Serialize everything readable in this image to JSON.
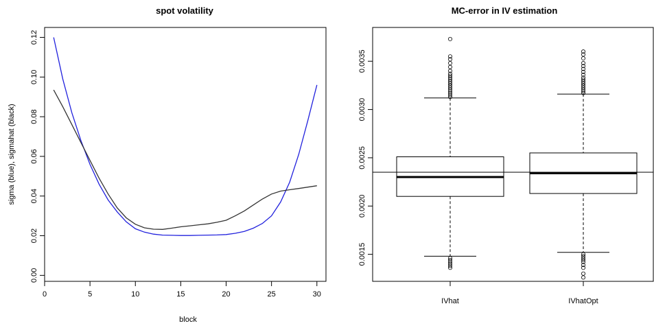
{
  "chart_data": [
    {
      "type": "line",
      "title": "spot volatility",
      "xlabel": "block",
      "ylabel": "sigma (blue), sigmahat (black)",
      "xlim": [
        0,
        31
      ],
      "ylim": [
        -0.003,
        0.125
      ],
      "xticks": [
        0,
        5,
        10,
        15,
        20,
        25,
        30
      ],
      "yticks": [
        0.0,
        0.02,
        0.04,
        0.06,
        0.08,
        0.1,
        0.12
      ],
      "ytick_labels": [
        "0.00",
        "0.02",
        "0.04",
        "0.06",
        "0.08",
        "0.10",
        "0.12"
      ],
      "grid": false,
      "series": [
        {
          "color": "#2020dd",
          "x": [
            1,
            2,
            3,
            4,
            5,
            6,
            7,
            8,
            9,
            10,
            11,
            12,
            13,
            14,
            15,
            16,
            17,
            18,
            19,
            20,
            21,
            22,
            23,
            24,
            25,
            26,
            27,
            28,
            29,
            30
          ],
          "y": [
            0.12,
            0.099,
            0.082,
            0.068,
            0.056,
            0.046,
            0.038,
            0.032,
            0.027,
            0.0235,
            0.0218,
            0.0208,
            0.0203,
            0.0202,
            0.0201,
            0.0201,
            0.0202,
            0.0203,
            0.0204,
            0.0206,
            0.0212,
            0.0222,
            0.0238,
            0.0262,
            0.03,
            0.037,
            0.047,
            0.061,
            0.078,
            0.096
          ]
        },
        {
          "color": "#333333",
          "x": [
            1,
            2,
            3,
            4,
            5,
            6,
            7,
            8,
            9,
            10,
            11,
            12,
            13,
            14,
            15,
            16,
            17,
            18,
            19,
            20,
            21,
            22,
            23,
            24,
            25,
            26,
            27,
            28,
            29,
            30
          ],
          "y": [
            0.0935,
            0.085,
            0.076,
            0.067,
            0.058,
            0.049,
            0.041,
            0.034,
            0.029,
            0.0258,
            0.024,
            0.0233,
            0.0232,
            0.0238,
            0.0245,
            0.025,
            0.0255,
            0.026,
            0.0268,
            0.0278,
            0.03,
            0.0325,
            0.0355,
            0.0385,
            0.041,
            0.0425,
            0.0432,
            0.0438,
            0.0445,
            0.0452
          ]
        }
      ]
    },
    {
      "type": "boxplot",
      "title": "MC-error in IV estimation",
      "categories": [
        "IVhat",
        "IVhatOpt"
      ],
      "ylim": [
        0.00122,
        0.00385
      ],
      "yticks": [
        0.0015,
        0.002,
        0.0025,
        0.003,
        0.0035
      ],
      "ytick_labels": [
        "0.0015",
        "0.0020",
        "0.0025",
        "0.0030",
        "0.0035"
      ],
      "reference_line": 0.00235,
      "boxes": [
        {
          "whisker_low": 0.00148,
          "q1": 0.0021,
          "median": 0.0023,
          "q3": 0.00251,
          "whisker_high": 0.00312,
          "outliers": [
            0.00373,
            0.00355,
            0.00352,
            0.00348,
            0.00344,
            0.0034,
            0.00337,
            0.00335,
            0.00333,
            0.00331,
            0.00329,
            0.00327,
            0.00325,
            0.00323,
            0.00321,
            0.00319,
            0.00317,
            0.00315,
            0.00313,
            0.00146,
            0.00144,
            0.00142,
            0.0014,
            0.00138,
            0.00136
          ]
        },
        {
          "whisker_low": 0.00152,
          "q1": 0.00213,
          "median": 0.00234,
          "q3": 0.00255,
          "whisker_high": 0.00316,
          "outliers": [
            0.0036,
            0.00357,
            0.00353,
            0.00348,
            0.00345,
            0.00342,
            0.00339,
            0.00336,
            0.00333,
            0.00331,
            0.00329,
            0.00327,
            0.00325,
            0.00323,
            0.00321,
            0.00319,
            0.00317,
            0.0015,
            0.00148,
            0.00146,
            0.00144,
            0.00142,
            0.00139,
            0.00136,
            0.0013,
            0.00126
          ]
        }
      ]
    }
  ]
}
